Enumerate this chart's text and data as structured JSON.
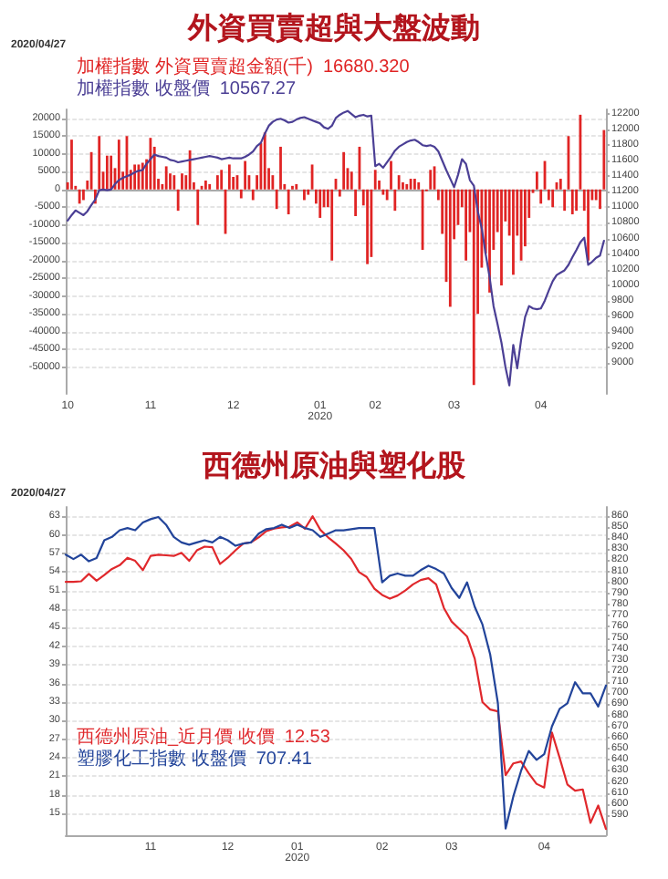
{
  "chart_data": [
    {
      "type": "bar",
      "title": "外資買賣超與大盤波動",
      "annotations": [
        "2020/04/27"
      ],
      "categories": [
        "10",
        null,
        null,
        null,
        null,
        null,
        null,
        null,
        null,
        null,
        null,
        null,
        null,
        null,
        null,
        null,
        null,
        null,
        null,
        null,
        null,
        "11",
        null,
        null,
        null,
        null,
        null,
        null,
        null,
        null,
        null,
        null,
        null,
        null,
        null,
        null,
        null,
        null,
        null,
        null,
        null,
        null,
        "12",
        null,
        null,
        null,
        null,
        null,
        null,
        null,
        null,
        null,
        null,
        null,
        null,
        null,
        null,
        null,
        null,
        null,
        null,
        null,
        null,
        null,
        "01\n2020",
        null,
        null,
        null,
        null,
        null,
        null,
        null,
        null,
        null,
        null,
        null,
        null,
        null,
        "02",
        null,
        null,
        null,
        null,
        null,
        null,
        null,
        null,
        null,
        null,
        null,
        null,
        null,
        null,
        null,
        null,
        null,
        null,
        null,
        "03",
        null,
        null,
        null,
        null,
        null,
        null,
        null,
        null,
        null,
        null,
        null,
        null,
        null,
        null,
        null,
        null,
        null,
        null,
        null,
        null,
        null,
        "04",
        null,
        null,
        null,
        null,
        null,
        null,
        null,
        null,
        null,
        null,
        null,
        null,
        null,
        null,
        null,
        null
      ],
      "series": [
        {
          "name": "加權指數 外資買賣超金額(千)  16680.320",
          "color": "#e02424",
          "values": [
            2000,
            14000,
            1000,
            -4000,
            -3000,
            2500,
            10500,
            -4000,
            15000,
            5000,
            9500,
            9500,
            6000,
            14000,
            5000,
            15000,
            5500,
            7000,
            7000,
            7500,
            8500,
            14500,
            12000,
            3000,
            1500,
            6500,
            4500,
            4000,
            -6000,
            4500,
            4000,
            11000,
            2000,
            -10000,
            1000,
            2500,
            1500,
            0,
            4000,
            5500,
            -12500,
            7000,
            3500,
            4000,
            -2500,
            8000,
            4000,
            -3000,
            4000,
            13000,
            16000,
            6000,
            4000,
            -5500,
            12000,
            1500,
            -7000,
            1000,
            1500,
            0,
            -3000,
            -1500,
            7000,
            -4000,
            -8000,
            -5000,
            -5000,
            -20000,
            3000,
            -2000,
            10500,
            6000,
            5000,
            -7500,
            12000,
            -4500,
            -21000,
            -19000,
            5500,
            2500,
            -1500,
            -3000,
            8000,
            -6000,
            4000,
            2000,
            1500,
            3000,
            3000,
            2000,
            -17000,
            -500,
            5500,
            6500,
            -3000,
            -12500,
            -26000,
            -33000,
            -14000,
            -10000,
            -5000,
            -20000,
            -12000,
            -55000,
            -35000,
            -22000,
            -18000,
            -29000,
            -17000,
            -12000,
            -27000,
            -9000,
            -13000,
            -24000,
            -13000,
            -20000,
            -16000,
            -8000,
            -1000,
            5000,
            -4000,
            8000,
            -3000,
            -5000,
            2000,
            3000,
            -6000,
            15000,
            -7000,
            -6000,
            21000,
            -6000,
            -20000,
            -3000,
            -3000,
            -5500,
            16700
          ]
        },
        {
          "name": "加權指數 收盤價  10567.27",
          "type": "line",
          "axis": "y2",
          "color": "#4b3f95",
          "values": [
            10830,
            10900,
            10960,
            10930,
            10900,
            10950,
            11030,
            11100,
            11220,
            11230,
            11220,
            11230,
            11300,
            11350,
            11380,
            11400,
            11420,
            11450,
            11470,
            11480,
            11560,
            11620,
            11680,
            11660,
            11650,
            11640,
            11610,
            11600,
            11580,
            11590,
            11600,
            11610,
            11620,
            11630,
            11640,
            11650,
            11660,
            11650,
            11640,
            11620,
            11630,
            11640,
            11630,
            11630,
            11630,
            11650,
            11680,
            11720,
            11790,
            11830,
            11950,
            12050,
            12100,
            12130,
            12140,
            12120,
            12090,
            12100,
            12130,
            12150,
            12160,
            12140,
            12120,
            12100,
            12080,
            12030,
            12010,
            12050,
            12150,
            12190,
            12220,
            12240,
            12200,
            12160,
            12180,
            12190,
            12170,
            12180,
            11530,
            11560,
            11510,
            11580,
            11650,
            11730,
            11780,
            11810,
            11840,
            11860,
            11870,
            11840,
            11800,
            11790,
            11800,
            11780,
            11720,
            11600,
            11480,
            11370,
            11260,
            11420,
            11620,
            11560,
            11350,
            11280,
            10950,
            10730,
            10400,
            10100,
            9730,
            9500,
            9260,
            8950,
            8710,
            9230,
            8930,
            9300,
            9590,
            9730,
            9700,
            9690,
            9700,
            9800,
            9930,
            10050,
            10130,
            10160,
            10190,
            10260,
            10360,
            10450,
            10550,
            10610,
            10260,
            10300,
            10350,
            10380,
            10570
          ]
        }
      ],
      "ylim": [
        -57500,
        22500
      ],
      "yticks": [
        -50000,
        -45000,
        -40000,
        -35000,
        -30000,
        -25000,
        -20000,
        -15000,
        -10000,
        -5000,
        0,
        5000,
        10000,
        15000,
        20000
      ],
      "y2lim": [
        8600,
        12260
      ],
      "y2ticks": [
        9000,
        9200,
        9400,
        9600,
        9800,
        10000,
        10200,
        10400,
        10600,
        10800,
        11000,
        11200,
        11400,
        11600,
        11800,
        12000,
        12200
      ],
      "grid": "y",
      "marker": "none",
      "line_style": "solid"
    },
    {
      "type": "line",
      "title": "西德州原油與塑化股",
      "annotations": [
        "2020/04/27"
      ],
      "categories": [
        null,
        null,
        null,
        null,
        null,
        null,
        null,
        null,
        null,
        null,
        null,
        "11",
        null,
        null,
        null,
        null,
        null,
        null,
        null,
        null,
        null,
        "12",
        null,
        null,
        null,
        null,
        null,
        null,
        null,
        null,
        "01\n2020",
        null,
        null,
        null,
        null,
        null,
        null,
        null,
        null,
        null,
        null,
        "02",
        null,
        null,
        null,
        null,
        null,
        null,
        null,
        null,
        "03",
        null,
        null,
        null,
        null,
        null,
        null,
        null,
        null,
        null,
        null,
        null,
        "04",
        null,
        null,
        null,
        null,
        null,
        null,
        null,
        null
      ],
      "series": [
        {
          "name": "西德州原油_近月價 收價  12.53",
          "color": "#e0282c",
          "values": [
            52.4,
            52.4,
            52.5,
            53.7,
            52.6,
            53.5,
            54.5,
            55.1,
            56.3,
            55.8,
            54.3,
            56.6,
            56.8,
            56.7,
            56.6,
            57.1,
            55.8,
            57.5,
            58.1,
            58.0,
            55.3,
            56.3,
            57.5,
            58.6,
            58.8,
            59.6,
            60.6,
            61.0,
            61.2,
            61.3,
            62.0,
            61.0,
            63.0,
            60.8,
            59.6,
            58.6,
            57.5,
            56.1,
            54.0,
            53.2,
            51.3,
            50.3,
            49.7,
            50.2,
            51.0,
            52.0,
            52.7,
            53.0,
            52.0,
            48.2,
            46.0,
            44.8,
            43.6,
            40.0,
            33.0,
            31.8,
            31.5,
            21.2,
            23.1,
            23.4,
            21.5,
            19.8,
            19.2,
            28.1,
            24.0,
            19.7,
            18.7,
            18.9,
            13.5,
            16.3,
            12.5
          ]
        },
        {
          "name": "塑膠化工指數 收盤價  707.41",
          "axis": "y2",
          "color": "#22449a",
          "values": [
            825,
            821,
            825,
            819,
            822,
            838,
            841,
            847,
            849,
            847,
            854,
            857,
            859,
            852,
            841,
            836,
            834,
            836,
            838,
            836,
            841,
            838,
            833,
            835,
            836,
            844,
            848,
            849,
            852,
            849,
            852,
            849,
            847,
            841,
            844,
            847,
            847,
            848,
            849,
            849,
            849,
            800,
            806,
            808,
            806,
            806,
            811,
            815,
            812,
            808,
            795,
            786,
            800,
            778,
            762,
            735,
            691,
            578,
            607,
            630,
            648,
            640,
            645,
            670,
            686,
            691,
            710,
            700,
            700,
            688,
            707
          ]
        }
      ],
      "ylim": [
        11.5,
        64.5
      ],
      "yticks": [
        15,
        18,
        21,
        24,
        27,
        30,
        33,
        36,
        39,
        42,
        45,
        48,
        51,
        54,
        57,
        60,
        63
      ],
      "y2lim": [
        572,
        868
      ],
      "y2ticks": [
        590,
        600,
        610,
        620,
        630,
        640,
        650,
        660,
        670,
        680,
        690,
        700,
        710,
        720,
        730,
        740,
        750,
        760,
        770,
        780,
        790,
        800,
        810,
        820,
        830,
        840,
        850,
        860
      ],
      "grid": "y",
      "marker": "none",
      "line_style": "solid"
    }
  ]
}
